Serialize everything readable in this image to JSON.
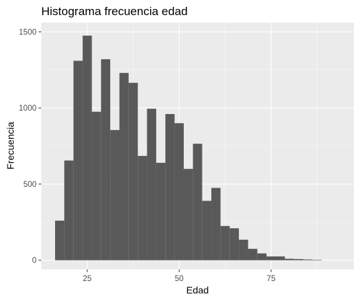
{
  "chart_data": {
    "type": "bar",
    "title": "Histograma frecuencia edad",
    "xlabel": "Edad",
    "ylabel": "Frecuencia",
    "xlim": [
      12.5,
      97.5
    ],
    "ylim": [
      -60,
      1560
    ],
    "x_ticks": [
      25,
      50,
      75
    ],
    "y_ticks": [
      0,
      500,
      1000,
      1500
    ],
    "x_tick_labels": [
      "25",
      "50",
      "75"
    ],
    "y_tick_labels": [
      "0",
      "500",
      "1000",
      "1500"
    ],
    "bin_width": 2.5,
    "bin_start": 16.25,
    "values": [
      260,
      655,
      1310,
      1475,
      975,
      1320,
      855,
      1230,
      1165,
      685,
      995,
      640,
      960,
      900,
      600,
      765,
      390,
      475,
      225,
      210,
      135,
      75,
      45,
      25,
      25,
      10,
      8,
      5,
      3
    ],
    "grid": true,
    "legend": "none",
    "colors": {
      "bar": "#595959",
      "panel": "#ebebeb",
      "grid_major": "#ffffff"
    }
  }
}
